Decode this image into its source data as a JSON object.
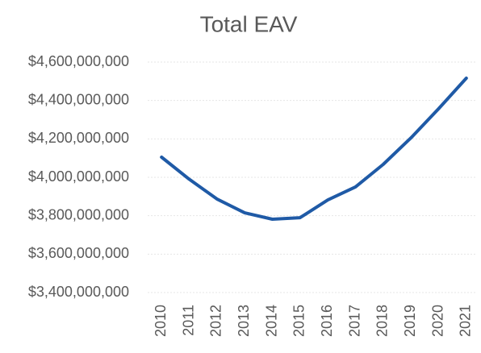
{
  "chart_data": {
    "type": "line",
    "title": "Total EAV",
    "categories": [
      "2010",
      "2011",
      "2012",
      "2013",
      "2014",
      "2015",
      "2016",
      "2017",
      "2018",
      "2019",
      "2020",
      "2021"
    ],
    "values": [
      4105000000,
      3990000000,
      3887000000,
      3815000000,
      3782000000,
      3790000000,
      3882000000,
      3950000000,
      4067000000,
      4205000000,
      4357000000,
      4516000000
    ],
    "color": "#1f5aa6",
    "ylim": [
      3400000000,
      4600000000
    ],
    "yticks": [
      {
        "value": 3400000000,
        "label": "$3,400,000,000"
      },
      {
        "value": 3600000000,
        "label": "$3,600,000,000"
      },
      {
        "value": 3800000000,
        "label": "$3,800,000,000"
      },
      {
        "value": 4000000000,
        "label": "$4,000,000,000"
      },
      {
        "value": 4200000000,
        "label": "$4,200,000,000"
      },
      {
        "value": 4400000000,
        "label": "$4,400,000,000"
      },
      {
        "value": 4600000000,
        "label": "$4,600,000,000"
      }
    ],
    "grid": true
  }
}
